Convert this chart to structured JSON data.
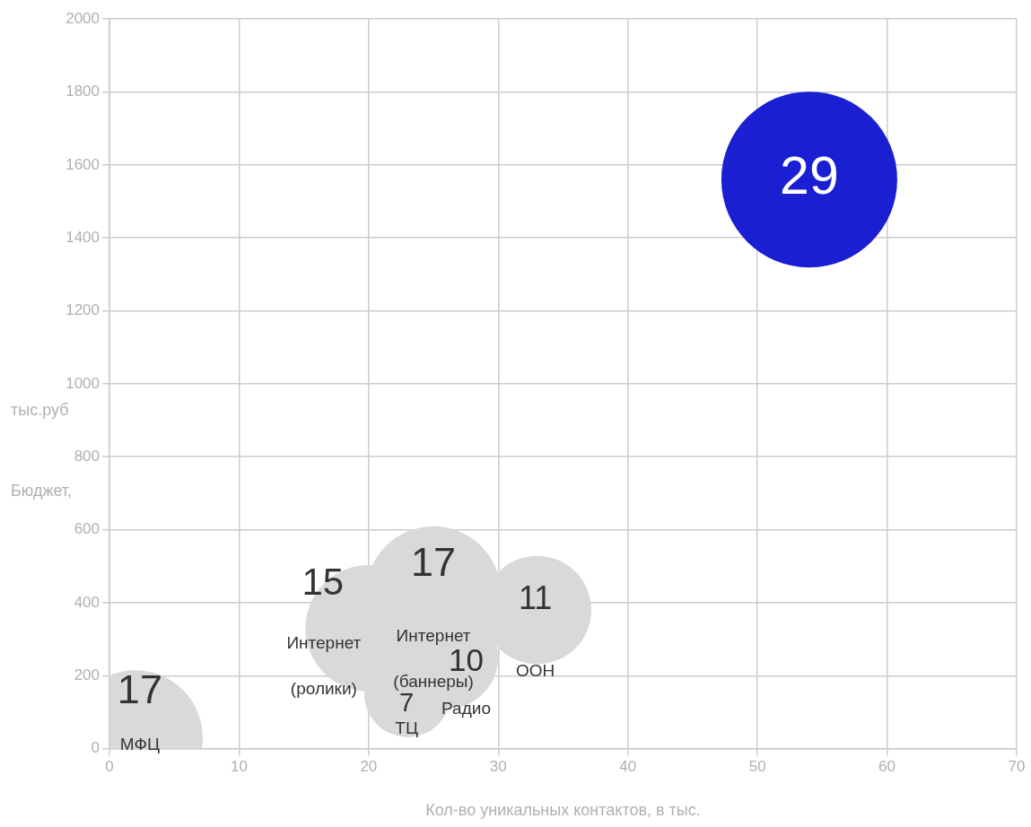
{
  "chart_data": {
    "type": "bubble",
    "xlabel": "Кол-во уникальных контактов, в тыс.",
    "ylabel": "Бюджет, тыс.руб",
    "xlim": [
      0,
      70
    ],
    "xticks": [
      0,
      10,
      20,
      30,
      40,
      50,
      60,
      70
    ],
    "ylim": [
      0,
      2000
    ],
    "yticks": [
      0,
      200,
      400,
      600,
      800,
      1000,
      1200,
      1400,
      1600,
      1800,
      2000
    ],
    "grid": true,
    "legend": false,
    "series": [
      {
        "name": "МФЦ",
        "color": "#d9d9d9",
        "x": [
          2
        ],
        "values": [
          30
        ],
        "sizes": [
          17
        ],
        "value_labels": [
          "17"
        ]
      },
      {
        "name": "Интернет (ролики)",
        "color": "#d9d9d9",
        "x": [
          20
        ],
        "values": [
          330
        ],
        "sizes": [
          15
        ],
        "value_labels": [
          "15"
        ]
      },
      {
        "name": "Интернет (баннеры)",
        "color": "#d9d9d9",
        "x": [
          25
        ],
        "values": [
          425
        ],
        "sizes": [
          17
        ],
        "value_labels": [
          "17"
        ]
      },
      {
        "name": "ООН",
        "color": "#d9d9d9",
        "x": [
          33
        ],
        "values": [
          380
        ],
        "sizes": [
          11
        ],
        "value_labels": [
          "11"
        ]
      },
      {
        "name": "Радио",
        "color": "#d9d9d9",
        "x": [
          26
        ],
        "values": [
          250
        ],
        "sizes": [
          10
        ],
        "value_labels": [
          "10"
        ]
      },
      {
        "name": "ТЦ",
        "color": "#d9d9d9",
        "x": [
          23
        ],
        "values": [
          150
        ],
        "sizes": [
          7
        ],
        "value_labels": [
          "7"
        ]
      },
      {
        "color": "#1a1fd1",
        "x": [
          54
        ],
        "values": [
          1560
        ],
        "sizes": [
          29
        ],
        "value_labels": [
          "29"
        ]
      }
    ]
  }
}
